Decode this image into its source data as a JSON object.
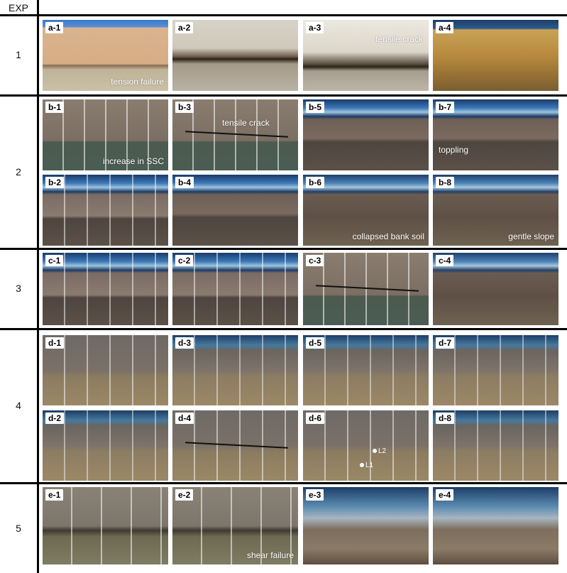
{
  "header": {
    "exp_label": "EXP"
  },
  "rows": [
    {
      "exp": "1",
      "panels": [
        {
          "label": "a-1",
          "caption": "tension failure",
          "caption_pos": "bottom-right",
          "kind": "sand"
        },
        {
          "label": "a-2",
          "caption": "",
          "kind": "dry"
        },
        {
          "label": "a-3",
          "caption": "tensile crack",
          "caption_pos": "top-right",
          "kind": "drytop"
        },
        {
          "label": "a-4",
          "caption": "",
          "kind": "wet"
        }
      ]
    },
    {
      "exp": "2",
      "panels": [
        {
          "label": "b-1",
          "caption": "increase in SSC",
          "caption_pos": "bottom-right",
          "kind": "grid"
        },
        {
          "label": "b-3",
          "caption": "tensile crack",
          "caption_pos": "top-center",
          "kind": "grid",
          "crack": true
        },
        {
          "label": "b-5",
          "caption": "",
          "kind": "tank"
        },
        {
          "label": "b-7",
          "caption": "toppling",
          "caption_pos": "bottom-left",
          "kind": "tank"
        },
        {
          "label": "b-2",
          "caption": "",
          "kind": "tankgrid"
        },
        {
          "label": "b-4",
          "caption": "",
          "kind": "tank"
        },
        {
          "label": "b-6",
          "caption": "collapsed bank soil",
          "caption_pos": "bottom-right",
          "kind": "mud"
        },
        {
          "label": "b-8",
          "caption": "gentle slope",
          "caption_pos": "bottom-right",
          "kind": "mud"
        }
      ]
    },
    {
      "exp": "3",
      "panels": [
        {
          "label": "c-1",
          "caption": "",
          "kind": "tankgrid"
        },
        {
          "label": "c-2",
          "caption": "",
          "kind": "tankgrid"
        },
        {
          "label": "c-3",
          "caption": "",
          "kind": "grid",
          "crack": true
        },
        {
          "label": "c-4",
          "caption": "",
          "kind": "mud"
        }
      ]
    },
    {
      "exp": "4",
      "panels": [
        {
          "label": "d-1",
          "caption": "",
          "kind": "dflat"
        },
        {
          "label": "d-3",
          "caption": "",
          "kind": "d"
        },
        {
          "label": "d-5",
          "caption": "",
          "kind": "d"
        },
        {
          "label": "d-7",
          "caption": "",
          "kind": "d"
        },
        {
          "label": "d-2",
          "caption": "",
          "kind": "d"
        },
        {
          "label": "d-4",
          "caption": "",
          "kind": "dflat",
          "crack": true
        },
        {
          "label": "d-6",
          "caption": "",
          "kind": "dflat",
          "markers": [
            "L2",
            "L1"
          ]
        },
        {
          "label": "d-8",
          "caption": "",
          "kind": "d"
        }
      ]
    },
    {
      "exp": "5",
      "panels": [
        {
          "label": "e-1",
          "caption": "",
          "kind": "e"
        },
        {
          "label": "e-2",
          "caption": "shear failure",
          "caption_pos": "bottom-right",
          "kind": "e"
        },
        {
          "label": "e-3",
          "caption": "",
          "kind": "etank"
        },
        {
          "label": "e-4",
          "caption": "",
          "kind": "etank"
        }
      ]
    }
  ]
}
